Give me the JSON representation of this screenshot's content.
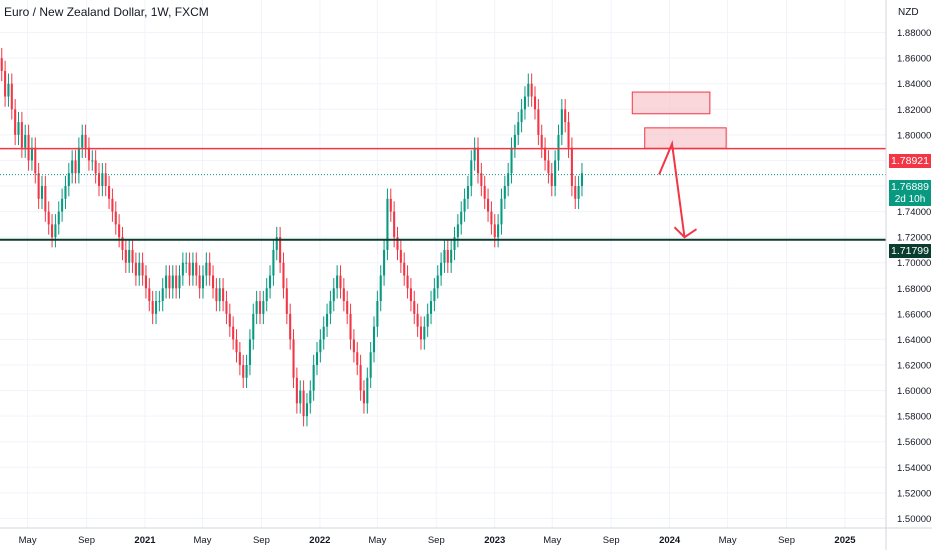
{
  "title": "Euro / New Zealand Dollar, 1W, FXCM",
  "currency": "NZD",
  "colors": {
    "up": "#089981",
    "down": "#f23645",
    "resistance_line": "#f23645",
    "support_line": "#0b3d2e",
    "zone_fill": "#f7c6cb",
    "zone_stroke": "#f23645",
    "grid": "#f0f3fa",
    "axis_text": "#131722"
  },
  "price_tags": {
    "resistance": "1.78921",
    "current": "1.76889",
    "timer": "2d 10h",
    "support": "1.71799"
  },
  "chart_data": {
    "type": "candlestick",
    "title": "Euro / New Zealand Dollar, 1W, FXCM",
    "ylim": [
      1.4925,
      1.9055
    ],
    "y_ticks": [
      "1.50000",
      "1.52000",
      "1.54000",
      "1.56000",
      "1.58000",
      "1.60000",
      "1.62000",
      "1.64000",
      "1.66000",
      "1.68000",
      "1.70000",
      "1.72000",
      "1.74000",
      "1.76000",
      "1.78000",
      "1.80000",
      "1.82000",
      "1.84000",
      "1.86000",
      "1.88000"
    ],
    "x_ticks": [
      "May",
      "Sep",
      "2021",
      "May",
      "Sep",
      "2022",
      "May",
      "Sep",
      "2023",
      "May",
      "Sep",
      "2024",
      "May",
      "Sep",
      "2025"
    ],
    "x_tick_dates": [
      "2020-05-01",
      "2020-09-01",
      "2021-01-01",
      "2021-05-01",
      "2021-09-01",
      "2022-01-01",
      "2022-05-01",
      "2022-09-01",
      "2023-01-01",
      "2023-05-01",
      "2023-09-01",
      "2024-01-01",
      "2024-05-01",
      "2024-09-01",
      "2025-01-01"
    ],
    "grid": true,
    "horizontal_lines": [
      {
        "value": 1.78921,
        "color": "#f23645",
        "role": "resistance"
      },
      {
        "value": 1.71799,
        "color": "#0b3d2e",
        "role": "support"
      }
    ],
    "zones": [
      {
        "x_start": "2023-10-15",
        "x_end": "2024-03-25",
        "y_low": 1.8165,
        "y_high": 1.8335
      },
      {
        "x_start": "2023-11-10",
        "x_end": "2024-04-28",
        "y_low": 1.7895,
        "y_high": 1.8055
      }
    ],
    "projection": [
      {
        "date": "2023-12-10",
        "value": 1.769
      },
      {
        "date": "2024-01-06",
        "value": 1.793
      },
      {
        "date": "2024-02-01",
        "value": 1.72
      }
    ],
    "current_price": 1.76889,
    "series": [
      {
        "start_date": "2020-03-01",
        "interval_days": 7,
        "close": [
          1.86,
          1.85,
          1.83,
          1.84,
          1.82,
          1.8,
          1.81,
          1.79,
          1.8,
          1.78,
          1.79,
          1.77,
          1.75,
          1.76,
          1.74,
          1.73,
          1.72,
          1.73,
          1.74,
          1.75,
          1.76,
          1.77,
          1.78,
          1.77,
          1.79,
          1.8,
          1.79,
          1.78,
          1.78,
          1.77,
          1.76,
          1.77,
          1.76,
          1.75,
          1.74,
          1.73,
          1.72,
          1.71,
          1.7,
          1.71,
          1.7,
          1.69,
          1.7,
          1.69,
          1.68,
          1.67,
          1.66,
          1.67,
          1.67,
          1.68,
          1.69,
          1.68,
          1.69,
          1.68,
          1.69,
          1.7,
          1.7,
          1.69,
          1.7,
          1.69,
          1.68,
          1.69,
          1.7,
          1.69,
          1.68,
          1.67,
          1.68,
          1.67,
          1.66,
          1.65,
          1.64,
          1.63,
          1.62,
          1.61,
          1.62,
          1.64,
          1.66,
          1.67,
          1.66,
          1.67,
          1.68,
          1.69,
          1.71,
          1.72,
          1.7,
          1.68,
          1.66,
          1.64,
          1.61,
          1.59,
          1.6,
          1.58,
          1.59,
          1.6,
          1.62,
          1.63,
          1.64,
          1.65,
          1.66,
          1.67,
          1.68,
          1.69,
          1.68,
          1.67,
          1.66,
          1.64,
          1.63,
          1.62,
          1.6,
          1.59,
          1.61,
          1.63,
          1.65,
          1.67,
          1.69,
          1.71,
          1.75,
          1.74,
          1.72,
          1.71,
          1.7,
          1.69,
          1.68,
          1.67,
          1.66,
          1.65,
          1.64,
          1.65,
          1.66,
          1.67,
          1.68,
          1.69,
          1.7,
          1.71,
          1.7,
          1.71,
          1.72,
          1.73,
          1.74,
          1.75,
          1.76,
          1.78,
          1.79,
          1.77,
          1.76,
          1.75,
          1.74,
          1.73,
          1.72,
          1.73,
          1.75,
          1.76,
          1.77,
          1.79,
          1.8,
          1.81,
          1.82,
          1.83,
          1.84,
          1.83,
          1.82,
          1.8,
          1.79,
          1.78,
          1.77,
          1.76,
          1.78,
          1.8,
          1.82,
          1.81,
          1.79,
          1.76,
          1.75,
          1.76,
          1.77
        ],
        "open": [
          1.84,
          1.86,
          1.85,
          1.83,
          1.84,
          1.82,
          1.8,
          1.81,
          1.79,
          1.8,
          1.78,
          1.79,
          1.77,
          1.75,
          1.76,
          1.74,
          1.73,
          1.72,
          1.73,
          1.74,
          1.75,
          1.76,
          1.77,
          1.78,
          1.77,
          1.79,
          1.8,
          1.79,
          1.78,
          1.78,
          1.77,
          1.76,
          1.77,
          1.76,
          1.75,
          1.74,
          1.73,
          1.72,
          1.71,
          1.7,
          1.71,
          1.7,
          1.69,
          1.7,
          1.69,
          1.68,
          1.67,
          1.66,
          1.67,
          1.67,
          1.68,
          1.69,
          1.68,
          1.69,
          1.68,
          1.69,
          1.7,
          1.7,
          1.69,
          1.7,
          1.69,
          1.68,
          1.69,
          1.7,
          1.69,
          1.68,
          1.67,
          1.68,
          1.67,
          1.66,
          1.65,
          1.64,
          1.63,
          1.62,
          1.61,
          1.62,
          1.64,
          1.66,
          1.67,
          1.66,
          1.67,
          1.68,
          1.69,
          1.71,
          1.72,
          1.7,
          1.68,
          1.66,
          1.64,
          1.61,
          1.59,
          1.6,
          1.58,
          1.59,
          1.6,
          1.62,
          1.63,
          1.64,
          1.65,
          1.66,
          1.67,
          1.68,
          1.69,
          1.68,
          1.67,
          1.66,
          1.64,
          1.63,
          1.62,
          1.6,
          1.59,
          1.61,
          1.63,
          1.65,
          1.67,
          1.69,
          1.71,
          1.75,
          1.74,
          1.72,
          1.71,
          1.7,
          1.69,
          1.68,
          1.67,
          1.66,
          1.65,
          1.64,
          1.65,
          1.66,
          1.67,
          1.68,
          1.69,
          1.7,
          1.71,
          1.7,
          1.71,
          1.72,
          1.73,
          1.74,
          1.75,
          1.76,
          1.78,
          1.79,
          1.77,
          1.76,
          1.75,
          1.74,
          1.73,
          1.72,
          1.73,
          1.75,
          1.76,
          1.77,
          1.79,
          1.8,
          1.81,
          1.82,
          1.83,
          1.84,
          1.83,
          1.82,
          1.8,
          1.79,
          1.78,
          1.77,
          1.76,
          1.78,
          1.8,
          1.82,
          1.81,
          1.79,
          1.76,
          1.75,
          1.76
        ]
      }
    ]
  }
}
